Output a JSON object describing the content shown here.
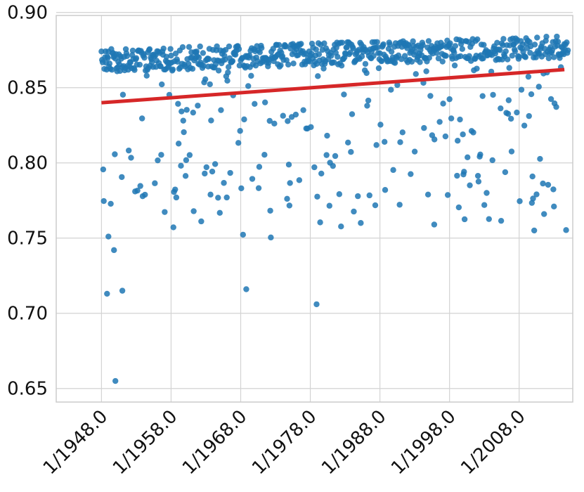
{
  "chart_data": {
    "type": "scatter",
    "title": "",
    "xlabel": "",
    "ylabel": "",
    "xlim": [
      1941.5,
      2015.7
    ],
    "ylim": [
      0.641,
      0.898
    ],
    "x_ticks": [
      1948,
      1958,
      1968,
      1978,
      1988,
      1998,
      2008
    ],
    "x_tick_labels": [
      "1/1948.0",
      "1/1958.0",
      "1/1968.0",
      "1/1978.0",
      "1/1988.0",
      "1/1998.0",
      "1/2008.0"
    ],
    "y_ticks": [
      0.65,
      0.7,
      0.75,
      0.8,
      0.85,
      0.9
    ],
    "y_tick_labels": [
      "0.65",
      "0.70",
      "0.75",
      "0.80",
      "0.85",
      "0.90"
    ],
    "grid": true,
    "legend": "none",
    "series": [
      {
        "kind": "points",
        "color": "#1f77b4",
        "x_start": 1948.0,
        "x_step": 0.08333,
        "count": 805,
        "y_model": {
          "upper_band_start": 0.868,
          "upper_band_end": 0.877,
          "upper_band_spread": 0.015,
          "outlier_fraction": 0.27
        },
        "notable_points": [
          {
            "x": 1950.0,
            "y": 0.655
          },
          {
            "x": 1978.9,
            "y": 0.706
          },
          {
            "x": 1948.8,
            "y": 0.713
          },
          {
            "x": 1951.0,
            "y": 0.715
          },
          {
            "x": 1968.8,
            "y": 0.716
          },
          {
            "x": 1949.0,
            "y": 0.751
          },
          {
            "x": 1949.8,
            "y": 0.742
          },
          {
            "x": 1995.8,
            "y": 0.759
          },
          {
            "x": 2013.0,
            "y": 0.771
          }
        ]
      },
      {
        "kind": "line",
        "color": "#d62728",
        "x": [
          1948.0,
          2014.5
        ],
        "y": [
          0.84,
          0.862
        ]
      }
    ]
  }
}
